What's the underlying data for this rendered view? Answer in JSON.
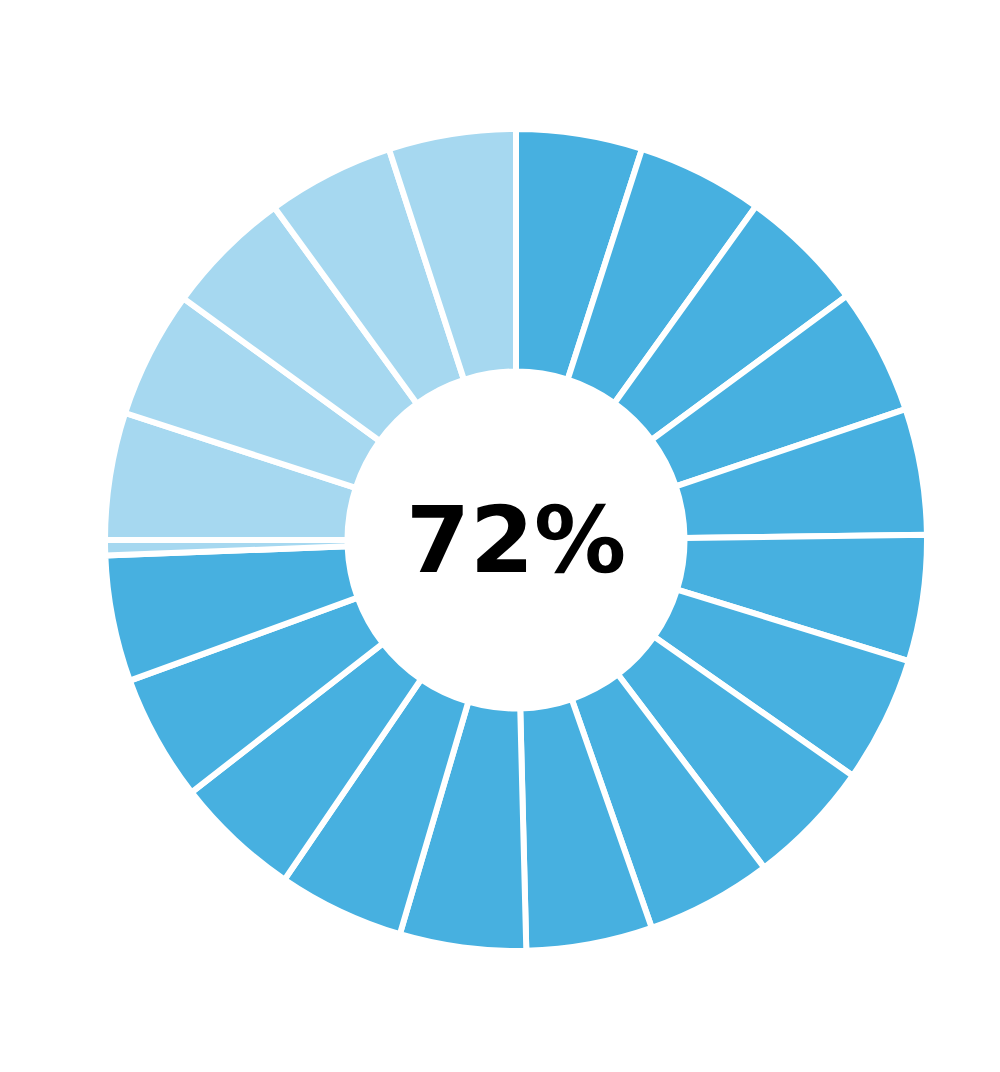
{
  "chart_data": {
    "type": "donut",
    "categories": [
      null,
      null,
      null,
      null,
      null,
      null,
      null,
      null,
      null,
      null,
      null,
      null,
      null,
      null,
      null,
      null,
      null,
      null,
      null,
      null,
      null
    ],
    "values": [
      4.96,
      4.96,
      4.96,
      4.96,
      4.96,
      4.96,
      4.96,
      4.96,
      4.96,
      4.96,
      4.96,
      4.96,
      4.96,
      4.96,
      4.96,
      0.6,
      5,
      5,
      5,
      5,
      5
    ],
    "colors": [
      "#47b0e0",
      "#47b0e0",
      "#47b0e0",
      "#47b0e0",
      "#47b0e0",
      "#47b0e0",
      "#47b0e0",
      "#47b0e0",
      "#47b0e0",
      "#47b0e0",
      "#47b0e0",
      "#47b0e0",
      "#47b0e0",
      "#47b0e0",
      "#47b0e0",
      "#a6d8f0",
      "#a6d8f0",
      "#a6d8f0",
      "#a6d8f0",
      "#a6d8f0",
      "#a6d8f0"
    ],
    "annotations": [
      "72%"
    ]
  }
}
